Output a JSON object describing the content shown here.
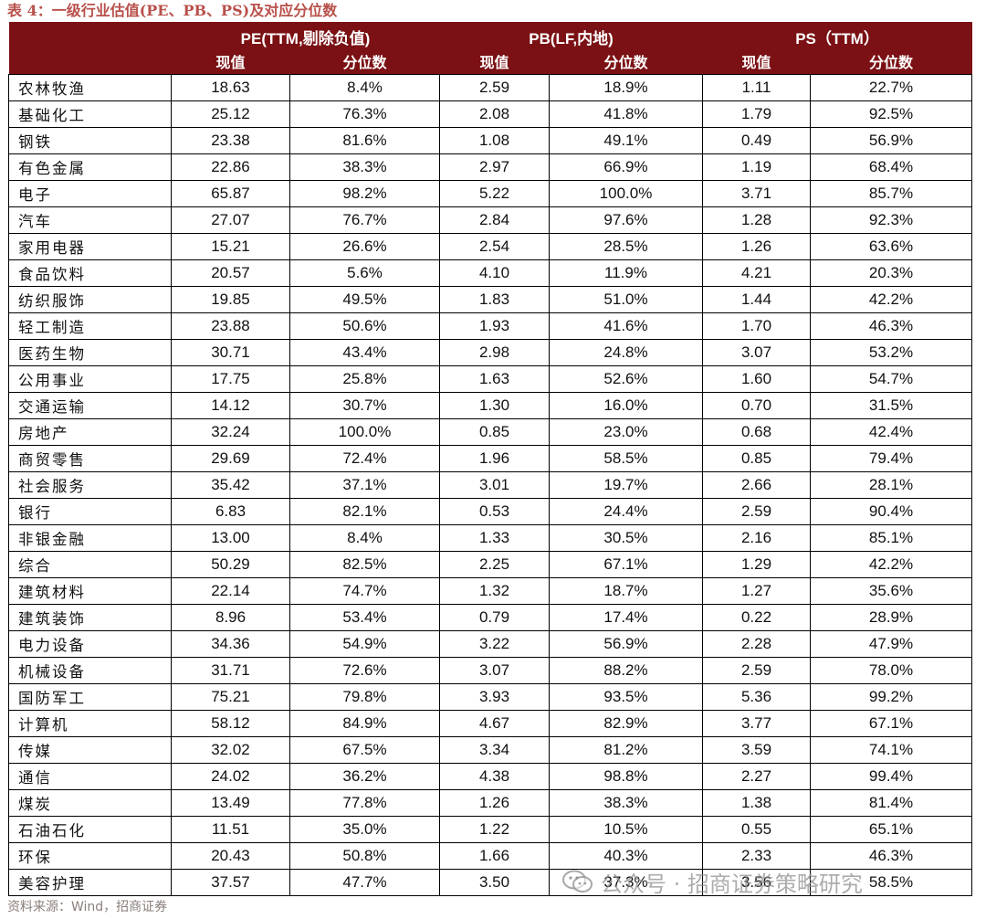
{
  "caption": "表 4：一级行业估值(PE、PB、PS)及对应分位数",
  "header": {
    "groups": [
      "PE(TTM,剔除负值)",
      "PB(LF,内地)",
      "PS（TTM）"
    ],
    "sub": [
      "现值",
      "分位数",
      "现值",
      "分位数",
      "现值",
      "分位数"
    ]
  },
  "rows": [
    [
      "农林牧渔",
      "18.63",
      "8.4%",
      "2.59",
      "18.9%",
      "1.11",
      "22.7%"
    ],
    [
      "基础化工",
      "25.12",
      "76.3%",
      "2.08",
      "41.8%",
      "1.79",
      "92.5%"
    ],
    [
      "钢铁",
      "23.38",
      "81.6%",
      "1.08",
      "49.1%",
      "0.49",
      "56.9%"
    ],
    [
      "有色金属",
      "22.86",
      "38.3%",
      "2.97",
      "66.9%",
      "1.19",
      "68.4%"
    ],
    [
      "电子",
      "65.87",
      "98.2%",
      "5.22",
      "100.0%",
      "3.71",
      "85.7%"
    ],
    [
      "汽车",
      "27.07",
      "76.7%",
      "2.84",
      "97.6%",
      "1.28",
      "92.3%"
    ],
    [
      "家用电器",
      "15.21",
      "26.6%",
      "2.54",
      "28.5%",
      "1.26",
      "63.6%"
    ],
    [
      "食品饮料",
      "20.57",
      "5.6%",
      "4.10",
      "11.9%",
      "4.21",
      "20.3%"
    ],
    [
      "纺织服饰",
      "19.85",
      "49.5%",
      "1.83",
      "51.0%",
      "1.44",
      "42.2%"
    ],
    [
      "轻工制造",
      "23.88",
      "50.6%",
      "1.93",
      "41.6%",
      "1.70",
      "46.3%"
    ],
    [
      "医药生物",
      "30.71",
      "43.4%",
      "2.98",
      "24.8%",
      "3.07",
      "53.2%"
    ],
    [
      "公用事业",
      "17.75",
      "25.8%",
      "1.63",
      "52.6%",
      "1.60",
      "54.7%"
    ],
    [
      "交通运输",
      "14.12",
      "30.7%",
      "1.30",
      "16.0%",
      "0.70",
      "31.5%"
    ],
    [
      "房地产",
      "32.24",
      "100.0%",
      "0.85",
      "23.0%",
      "0.68",
      "42.4%"
    ],
    [
      "商贸零售",
      "29.69",
      "72.4%",
      "1.96",
      "58.5%",
      "0.85",
      "79.4%"
    ],
    [
      "社会服务",
      "35.42",
      "37.1%",
      "3.01",
      "19.7%",
      "2.66",
      "28.1%"
    ],
    [
      "银行",
      "6.83",
      "82.1%",
      "0.53",
      "24.4%",
      "2.59",
      "90.4%"
    ],
    [
      "非银金融",
      "13.00",
      "8.4%",
      "1.33",
      "30.5%",
      "2.16",
      "85.1%"
    ],
    [
      "综合",
      "50.29",
      "82.5%",
      "2.25",
      "67.1%",
      "1.29",
      "42.2%"
    ],
    [
      "建筑材料",
      "22.14",
      "74.7%",
      "1.32",
      "18.7%",
      "1.27",
      "35.6%"
    ],
    [
      "建筑装饰",
      "8.96",
      "53.4%",
      "0.79",
      "17.4%",
      "0.22",
      "28.9%"
    ],
    [
      "电力设备",
      "34.36",
      "54.9%",
      "3.22",
      "56.9%",
      "2.28",
      "47.9%"
    ],
    [
      "机械设备",
      "31.71",
      "72.6%",
      "3.07",
      "88.2%",
      "2.59",
      "78.0%"
    ],
    [
      "国防军工",
      "75.21",
      "79.8%",
      "3.93",
      "93.5%",
      "5.36",
      "99.2%"
    ],
    [
      "计算机",
      "58.12",
      "84.9%",
      "4.67",
      "82.9%",
      "3.77",
      "67.1%"
    ],
    [
      "传媒",
      "32.02",
      "67.5%",
      "3.34",
      "81.2%",
      "3.59",
      "74.1%"
    ],
    [
      "通信",
      "24.02",
      "36.2%",
      "4.38",
      "98.8%",
      "2.27",
      "99.4%"
    ],
    [
      "煤炭",
      "13.49",
      "77.8%",
      "1.26",
      "38.3%",
      "1.38",
      "81.4%"
    ],
    [
      "石油石化",
      "11.51",
      "35.0%",
      "1.22",
      "10.5%",
      "0.55",
      "65.1%"
    ],
    [
      "环保",
      "20.43",
      "50.8%",
      "1.66",
      "40.3%",
      "2.33",
      "46.3%"
    ],
    [
      "美容护理",
      "37.57",
      "47.7%",
      "3.50",
      "37.3%",
      "3.56",
      "58.5%"
    ]
  ],
  "footer": "资料来源：Wind，招商证券",
  "watermark": {
    "text": "公众号 · 招商证券策略研究",
    "icon": "wechat-icon"
  },
  "colors": {
    "header_bg": "#7B1114",
    "caption": "#B8504A"
  }
}
